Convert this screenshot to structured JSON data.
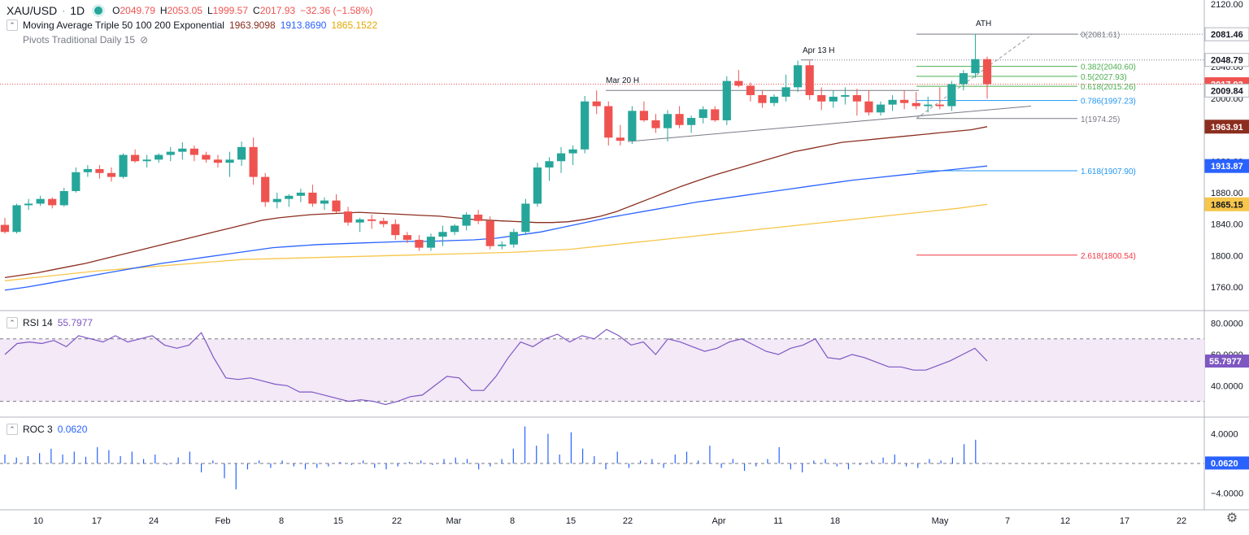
{
  "header": {
    "symbol": "XAU/USD",
    "interval": "1D",
    "ohlc": {
      "o_label": "O",
      "o": "2049.79",
      "h_label": "H",
      "h": "2053.05",
      "l_label": "L",
      "l": "1999.57",
      "c_label": "C",
      "c": "2017.93",
      "change": "−32.36 (−1.58%)"
    }
  },
  "indicators": {
    "ma": {
      "label": "Moving Average Triple 50 100 200 Exponential",
      "v50": "1963.9098",
      "v100": "1913.8690",
      "v200": "1865.1522",
      "colors": {
        "ma50": "#8b2e1f",
        "ma100": "#2962ff",
        "ma200": "#f7c64a"
      }
    },
    "pivots": {
      "label": "Pivots Traditional Daily 15"
    },
    "rsi": {
      "label": "RSI 14",
      "value": "55.7977",
      "color": "#7e57c2"
    },
    "roc": {
      "label": "ROC 3",
      "value": "0.0620",
      "color": "#2962ff"
    }
  },
  "price_axis": {
    "ticks": [
      "2120.00",
      "2080.00",
      "2040.00",
      "2000.00",
      "1960.00",
      "1920.00",
      "1880.00",
      "1840.00",
      "1800.00",
      "1760.00"
    ],
    "badges": [
      {
        "text": "2081.46",
        "value": 2081.46,
        "bg": "#ffffff",
        "fg": "#131722",
        "border": "#b2b5be"
      },
      {
        "text": "2048.79",
        "value": 2048.79,
        "bg": "#ffffff",
        "fg": "#131722",
        "border": "#b2b5be"
      },
      {
        "text": "2017.93",
        "value": 2017.93,
        "bg": "#ef5350",
        "fg": "#ffffff",
        "border": "#ef5350"
      },
      {
        "text": "2009.84",
        "value": 2009.84,
        "bg": "#ffffff",
        "fg": "#131722",
        "border": "#b2b5be"
      },
      {
        "text": "1963.91",
        "value": 1963.91,
        "bg": "#8b2e1f",
        "fg": "#ffffff",
        "border": "#8b2e1f"
      },
      {
        "text": "1913.87",
        "value": 1913.87,
        "bg": "#2962ff",
        "fg": "#ffffff",
        "border": "#2962ff"
      },
      {
        "text": "1865.15",
        "value": 1865.15,
        "bg": "#f7c64a",
        "fg": "#131722",
        "border": "#f7c64a"
      }
    ]
  },
  "rsi_axis": {
    "ticks": [
      "80.0000",
      "60.0000",
      "40.0000"
    ],
    "badge": "55.7977"
  },
  "roc_axis": {
    "ticks": [
      "4.0000",
      "−4.0000"
    ],
    "badge": "0.0620"
  },
  "time_axis": {
    "labels": [
      "10",
      "17",
      "24",
      "Feb",
      "8",
      "15",
      "22",
      "Mar",
      "8",
      "15",
      "22",
      "Apr",
      "11",
      "18",
      "May",
      "7",
      "12",
      "17",
      "22"
    ]
  },
  "annotations": {
    "ath": "ATH",
    "apr13": "Apr 13 H",
    "mar20": "Mar 20 H",
    "fib": [
      "0(2081.61)",
      "0.382(2040.60)",
      "0.5(2027.93)",
      "0.618(2015.26)",
      "0.786(1997.23)",
      "1(1974.25)",
      "1.618(1907.90)",
      "2.618(1800.54)"
    ]
  },
  "chart_data": {
    "type": "candlestick",
    "title": "XAU/USD",
    "ylim": [
      1730,
      2125
    ],
    "candles": [
      [
        1839,
        1848,
        1828,
        1830
      ],
      [
        1830,
        1866,
        1828,
        1864
      ],
      [
        1864,
        1872,
        1858,
        1866
      ],
      [
        1866,
        1876,
        1863,
        1872
      ],
      [
        1872,
        1874,
        1860,
        1864
      ],
      [
        1864,
        1886,
        1862,
        1882
      ],
      [
        1882,
        1912,
        1880,
        1906
      ],
      [
        1906,
        1915,
        1900,
        1910
      ],
      [
        1910,
        1915,
        1898,
        1905
      ],
      [
        1905,
        1912,
        1894,
        1900
      ],
      [
        1900,
        1930,
        1898,
        1928
      ],
      [
        1928,
        1935,
        1918,
        1920
      ],
      [
        1920,
        1928,
        1912,
        1922
      ],
      [
        1922,
        1930,
        1918,
        1928
      ],
      [
        1928,
        1938,
        1920,
        1932
      ],
      [
        1932,
        1944,
        1922,
        1936
      ],
      [
        1936,
        1940,
        1920,
        1928
      ],
      [
        1928,
        1932,
        1918,
        1922
      ],
      [
        1922,
        1928,
        1912,
        1918
      ],
      [
        1918,
        1932,
        1900,
        1922
      ],
      [
        1922,
        1945,
        1914,
        1938
      ],
      [
        1938,
        1950,
        1890,
        1900
      ],
      [
        1900,
        1905,
        1862,
        1868
      ],
      [
        1868,
        1880,
        1860,
        1872
      ],
      [
        1872,
        1878,
        1862,
        1876
      ],
      [
        1876,
        1885,
        1868,
        1880
      ],
      [
        1880,
        1890,
        1862,
        1866
      ],
      [
        1866,
        1874,
        1858,
        1870
      ],
      [
        1870,
        1878,
        1854,
        1856
      ],
      [
        1856,
        1862,
        1838,
        1842
      ],
      [
        1842,
        1848,
        1830,
        1846
      ],
      [
        1846,
        1852,
        1834,
        1844
      ],
      [
        1844,
        1848,
        1836,
        1840
      ],
      [
        1840,
        1846,
        1820,
        1826
      ],
      [
        1826,
        1830,
        1816,
        1820
      ],
      [
        1820,
        1826,
        1806,
        1810
      ],
      [
        1810,
        1828,
        1806,
        1824
      ],
      [
        1824,
        1838,
        1812,
        1830
      ],
      [
        1830,
        1840,
        1826,
        1838
      ],
      [
        1838,
        1855,
        1832,
        1852
      ],
      [
        1852,
        1858,
        1840,
        1844
      ],
      [
        1844,
        1850,
        1808,
        1812
      ],
      [
        1812,
        1818,
        1808,
        1814
      ],
      [
        1814,
        1834,
        1810,
        1830
      ],
      [
        1830,
        1872,
        1826,
        1866
      ],
      [
        1866,
        1918,
        1862,
        1912
      ],
      [
        1912,
        1925,
        1895,
        1920
      ],
      [
        1920,
        1938,
        1905,
        1930
      ],
      [
        1930,
        1940,
        1915,
        1935
      ],
      [
        1935,
        2003,
        1930,
        1996
      ],
      [
        1996,
        2010,
        1980,
        1990
      ],
      [
        1990,
        1996,
        1940,
        1950
      ],
      [
        1950,
        1966,
        1940,
        1946
      ],
      [
        1946,
        1990,
        1942,
        1984
      ],
      [
        1984,
        1996,
        1970,
        1972
      ],
      [
        1972,
        1980,
        1956,
        1962
      ],
      [
        1962,
        1985,
        1945,
        1980
      ],
      [
        1980,
        1990,
        1962,
        1966
      ],
      [
        1966,
        1978,
        1956,
        1975
      ],
      [
        1975,
        1990,
        1968,
        1986
      ],
      [
        1986,
        1990,
        1970,
        1972
      ],
      [
        1972,
        2028,
        1966,
        2022
      ],
      [
        2022,
        2036,
        2014,
        2016
      ],
      [
        2016,
        2020,
        1996,
        2004
      ],
      [
        2004,
        2010,
        1988,
        1994
      ],
      [
        1994,
        2005,
        1990,
        2002
      ],
      [
        2002,
        2030,
        1996,
        2014
      ],
      [
        2014,
        2048,
        2008,
        2042
      ],
      [
        2042,
        2048,
        1998,
        2004
      ],
      [
        2004,
        2014,
        1985,
        1996
      ],
      [
        1996,
        2010,
        1988,
        2002
      ],
      [
        2002,
        2014,
        1992,
        2004
      ],
      [
        2004,
        2012,
        1978,
        1996
      ],
      [
        1996,
        2010,
        1978,
        1982
      ],
      [
        1982,
        1996,
        1978,
        1992
      ],
      [
        1992,
        2004,
        1984,
        1998
      ],
      [
        1998,
        2010,
        1986,
        1994
      ],
      [
        1994,
        2008,
        1986,
        1990
      ],
      [
        1990,
        2002,
        1982,
        1992
      ],
      [
        1992,
        2014,
        1986,
        1990
      ],
      [
        1990,
        2022,
        1984,
        2018
      ],
      [
        2018,
        2036,
        2010,
        2032
      ],
      [
        2032,
        2082,
        2026,
        2049.79
      ],
      [
        2049.79,
        2053.05,
        1999.57,
        2017.93
      ]
    ],
    "rsi": [
      60,
      67,
      68,
      67,
      69,
      65,
      72,
      70,
      68,
      72,
      68,
      70,
      72,
      66,
      64,
      66,
      74,
      58,
      45,
      44,
      45,
      43,
      41,
      40,
      36,
      36,
      34,
      32,
      30,
      31,
      30,
      28,
      30,
      33,
      34,
      40,
      46,
      45,
      37,
      37,
      46,
      58,
      68,
      65,
      70,
      73,
      68,
      72,
      70,
      76,
      72,
      66,
      68,
      60,
      70,
      68,
      65,
      62,
      64,
      68,
      70,
      66,
      62,
      60,
      64,
      66,
      70,
      58,
      57,
      60,
      58,
      55,
      52,
      52,
      50,
      50,
      53,
      56,
      60,
      64,
      55.7977
    ],
    "roc": [
      1.2,
      0.8,
      1.0,
      1.4,
      2.0,
      1.2,
      1.6,
      0.9,
      2.2,
      1.8,
      1.0,
      1.6,
      0.6,
      1.2,
      -0.2,
      0.8,
      1.6,
      -1.2,
      0.4,
      -2.0,
      -3.5,
      -0.8,
      0.4,
      -0.6,
      0.4,
      -0.4,
      -0.8,
      -0.6,
      -0.4,
      0.2,
      -0.2,
      0.4,
      -0.6,
      -0.8,
      -0.4,
      0.2,
      0.4,
      -0.2,
      0.6,
      0.8,
      0.6,
      -0.8,
      -0.4,
      0.6,
      2.0,
      5.0,
      2.4,
      4.0,
      1.2,
      4.2,
      2.0,
      1.0,
      -0.8,
      1.6,
      -0.6,
      0.4,
      0.6,
      -0.6,
      1.2,
      1.6,
      0.4,
      2.4,
      -0.6,
      0.6,
      -1.0,
      -0.4,
      0.6,
      2.2,
      -0.8,
      -1.2,
      0.4,
      0.6,
      -0.4,
      -0.8,
      -0.2,
      0.4,
      0.8,
      1.2,
      -0.4,
      -0.6,
      0.6,
      0.4,
      0.8,
      2.6,
      3.2,
      0.062
    ],
    "ma50": [
      1772,
      1775,
      1778,
      1782,
      1786,
      1790,
      1795,
      1800,
      1805,
      1810,
      1815,
      1820,
      1825,
      1830,
      1835,
      1840,
      1845,
      1848,
      1850,
      1852,
      1853,
      1854,
      1855,
      1854,
      1853,
      1852,
      1851,
      1850,
      1848,
      1846,
      1845,
      1844,
      1843,
      1842,
      1842,
      1843,
      1846,
      1850,
      1856,
      1864,
      1872,
      1880,
      1888,
      1895,
      1902,
      1908,
      1914,
      1920,
      1926,
      1932,
      1936,
      1940,
      1944,
      1946,
      1948,
      1950,
      1952,
      1954,
      1956,
      1958,
      1960,
      1963.91
    ],
    "ma100": [
      1756,
      1760,
      1765,
      1770,
      1775,
      1780,
      1785,
      1790,
      1794,
      1798,
      1802,
      1806,
      1810,
      1812,
      1814,
      1815,
      1816,
      1817,
      1818,
      1818,
      1819,
      1820,
      1822,
      1826,
      1830,
      1836,
      1842,
      1848,
      1853,
      1858,
      1863,
      1868,
      1872,
      1876,
      1880,
      1884,
      1888,
      1892,
      1896,
      1899,
      1902,
      1905,
      1908,
      1911,
      1913.87
    ],
    "ma200": [
      1768,
      1772,
      1776,
      1780,
      1783,
      1786,
      1789,
      1792,
      1795,
      1796,
      1797,
      1798,
      1799,
      1800,
      1801,
      1802,
      1803,
      1804,
      1806,
      1808,
      1812,
      1816,
      1820,
      1824,
      1828,
      1832,
      1836,
      1840,
      1844,
      1848,
      1852,
      1856,
      1860,
      1865.15
    ]
  }
}
